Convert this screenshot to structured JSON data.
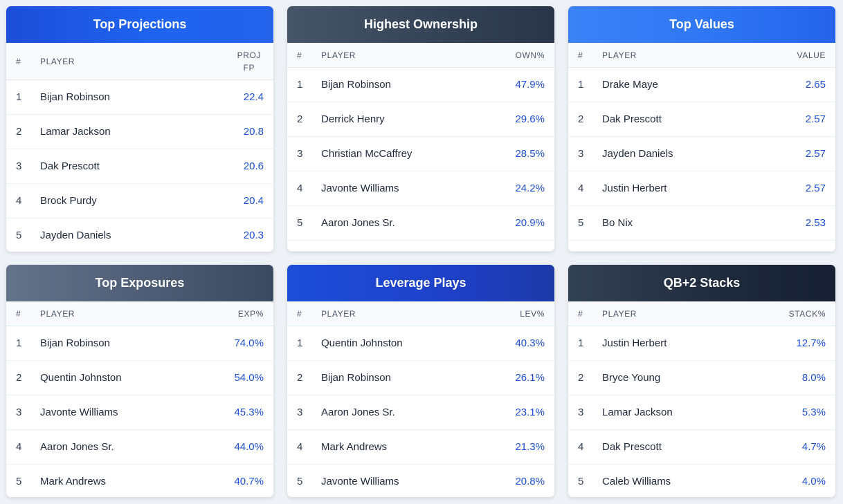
{
  "cards": [
    {
      "title": "Top Projections",
      "col_num": "#",
      "col_player": "PLAYER",
      "col_value": "PROJ FP",
      "col_value_line1": "PROJ",
      "col_value_line2": "FP",
      "rows": [
        {
          "rank": "1",
          "player": "Bijan Robinson",
          "value": "22.4"
        },
        {
          "rank": "2",
          "player": "Lamar Jackson",
          "value": "20.8"
        },
        {
          "rank": "3",
          "player": "Dak Prescott",
          "value": "20.6"
        },
        {
          "rank": "4",
          "player": "Brock Purdy",
          "value": "20.4"
        },
        {
          "rank": "5",
          "player": "Jayden Daniels",
          "value": "20.3"
        }
      ]
    },
    {
      "title": "Highest Ownership",
      "col_num": "#",
      "col_player": "PLAYER",
      "col_value": "OWN%",
      "rows": [
        {
          "rank": "1",
          "player": "Bijan Robinson",
          "value": "47.9%"
        },
        {
          "rank": "2",
          "player": "Derrick Henry",
          "value": "29.6%"
        },
        {
          "rank": "3",
          "player": "Christian McCaffrey",
          "value": "28.5%"
        },
        {
          "rank": "4",
          "player": "Javonte Williams",
          "value": "24.2%"
        },
        {
          "rank": "5",
          "player": "Aaron Jones Sr.",
          "value": "20.9%"
        }
      ]
    },
    {
      "title": "Top Values",
      "col_num": "#",
      "col_player": "PLAYER",
      "col_value": "VALUE",
      "rows": [
        {
          "rank": "1",
          "player": "Drake Maye",
          "value": "2.65"
        },
        {
          "rank": "2",
          "player": "Dak Prescott",
          "value": "2.57"
        },
        {
          "rank": "3",
          "player": "Jayden Daniels",
          "value": "2.57"
        },
        {
          "rank": "4",
          "player": "Justin Herbert",
          "value": "2.57"
        },
        {
          "rank": "5",
          "player": "Bo Nix",
          "value": "2.53"
        }
      ]
    },
    {
      "title": "Top Exposures",
      "col_num": "#",
      "col_player": "PLAYER",
      "col_value": "EXP%",
      "rows": [
        {
          "rank": "1",
          "player": "Bijan Robinson",
          "value": "74.0%"
        },
        {
          "rank": "2",
          "player": "Quentin Johnston",
          "value": "54.0%"
        },
        {
          "rank": "3",
          "player": "Javonte Williams",
          "value": "45.3%"
        },
        {
          "rank": "4",
          "player": "Aaron Jones Sr.",
          "value": "44.0%"
        },
        {
          "rank": "5",
          "player": "Mark Andrews",
          "value": "40.7%"
        }
      ]
    },
    {
      "title": "Leverage Plays",
      "col_num": "#",
      "col_player": "PLAYER",
      "col_value": "LEV%",
      "rows": [
        {
          "rank": "1",
          "player": "Quentin Johnston",
          "value": "40.3%"
        },
        {
          "rank": "2",
          "player": "Bijan Robinson",
          "value": "26.1%"
        },
        {
          "rank": "3",
          "player": "Aaron Jones Sr.",
          "value": "23.1%"
        },
        {
          "rank": "4",
          "player": "Mark Andrews",
          "value": "21.3%"
        },
        {
          "rank": "5",
          "player": "Javonte Williams",
          "value": "20.8%"
        }
      ]
    },
    {
      "title": "QB+2 Stacks",
      "col_num": "#",
      "col_player": "PLAYER",
      "col_value": "STACK%",
      "rows": [
        {
          "rank": "1",
          "player": "Justin Herbert",
          "value": "12.7%"
        },
        {
          "rank": "2",
          "player": "Bryce Young",
          "value": "8.0%"
        },
        {
          "rank": "3",
          "player": "Lamar Jackson",
          "value": "5.3%"
        },
        {
          "rank": "4",
          "player": "Dak Prescott",
          "value": "4.7%"
        },
        {
          "rank": "5",
          "player": "Caleb Williams",
          "value": "4.0%"
        }
      ]
    }
  ],
  "colors": {
    "value_text": "#1d4ed8",
    "page_background": "#eef1f5"
  }
}
